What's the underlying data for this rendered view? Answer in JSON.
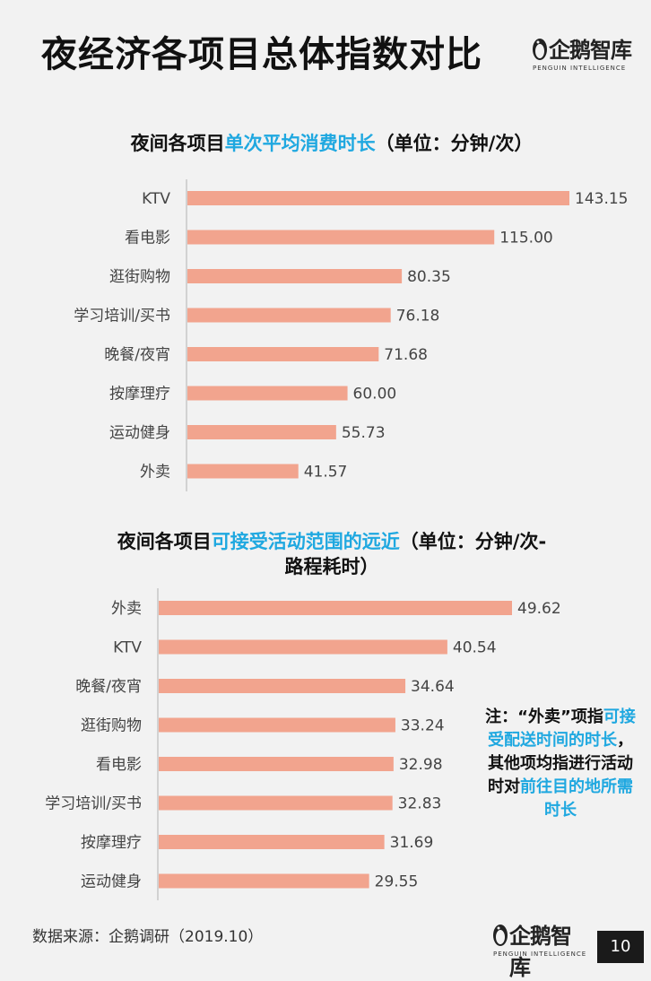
{
  "header": {
    "title": "夜经济各项目总体指数对比"
  },
  "logo": {
    "name": "企鹅智库",
    "subtitle": "PENGUIN INTELLIGENCE"
  },
  "charts": {
    "top": {
      "title_plain": "夜间各项目",
      "title_highlight": "单次平均消费时长",
      "title_suffix": "（单位：分钟/次）"
    },
    "bottom": {
      "title_plain": "夜间各项目",
      "title_highlight": "可接受活动范围的远近",
      "title_suffix": "（单位：分钟/次-",
      "title_line2": "路程耗时）"
    }
  },
  "note": {
    "part1": "注：“外卖”项指",
    "part2_highlight": "可接受配送时间的时长",
    "part3": "，其他项均指进行活动时对",
    "part4_highlight": "前往目的地所需时长"
  },
  "footer": {
    "source": "数据来源：企鹅调研（2019.10）",
    "page_number": "10"
  },
  "colors": {
    "bar": "#f2a48e",
    "accent": "#1fa8e0",
    "axis": "#c8c8c8"
  },
  "chart_data": [
    {
      "type": "bar",
      "orientation": "horizontal",
      "title": "夜间各项目单次平均消费时长（单位：分钟/次）",
      "categories": [
        "KTV",
        "看电影",
        "逛街购物",
        "学习培训/买书",
        "晚餐/夜宵",
        "按摩理疗",
        "运动健身",
        "外卖"
      ],
      "values": [
        143.15,
        115.0,
        80.35,
        76.18,
        71.68,
        60.0,
        55.73,
        41.57
      ],
      "value_labels": [
        "143.15",
        "115.00",
        "80.35",
        "76.18",
        "71.68",
        "60.00",
        "55.73",
        "41.57"
      ],
      "xlim": [
        0,
        143.15
      ]
    },
    {
      "type": "bar",
      "orientation": "horizontal",
      "title": "夜间各项目可接受活动范围的远近（单位：分钟/次-路程耗时）",
      "categories": [
        "外卖",
        "KTV",
        "晚餐/夜宵",
        "逛街购物",
        "看电影",
        "学习培训/买书",
        "按摩理疗",
        "运动健身"
      ],
      "values": [
        49.62,
        40.54,
        34.64,
        33.24,
        32.98,
        32.83,
        31.69,
        29.55
      ],
      "value_labels": [
        "49.62",
        "40.54",
        "34.64",
        "33.24",
        "32.98",
        "32.83",
        "31.69",
        "29.55"
      ],
      "xlim": [
        0,
        49.62
      ]
    }
  ]
}
